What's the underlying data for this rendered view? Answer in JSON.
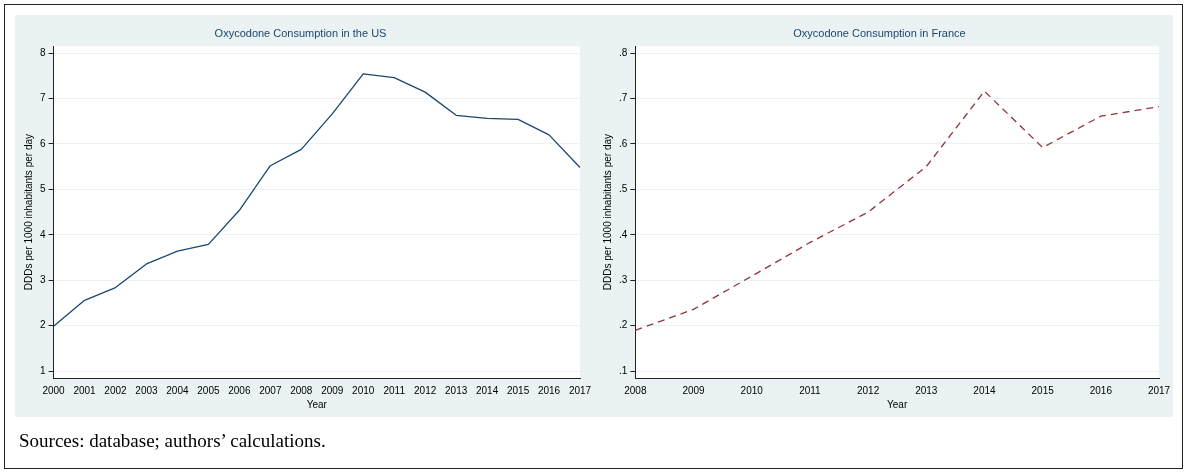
{
  "chart_data": [
    {
      "type": "line",
      "title": "Oxycodone Consumption in the US",
      "xlabel": "Year",
      "ylabel": "DDDs per 1000 inhabitants per day",
      "categories": [
        "2000",
        "2001",
        "2002",
        "2003",
        "2004",
        "2005",
        "2006",
        "2007",
        "2008",
        "2009",
        "2010",
        "2011",
        "2012",
        "2013",
        "2014",
        "2015",
        "2016",
        "2017"
      ],
      "series": [
        {
          "color": "#1a476f",
          "values": [
            1.99,
            2.56,
            2.84,
            3.36,
            3.64,
            3.79,
            4.54,
            5.52,
            5.88,
            6.66,
            7.54,
            7.46,
            7.14,
            6.63,
            6.56,
            6.54,
            6.2,
            5.48
          ]
        }
      ],
      "ylim": [
        0.85,
        8.15
      ],
      "yticks": [
        1,
        2,
        3,
        4,
        5,
        6,
        7,
        8
      ],
      "grid": "y",
      "line_style": "solid",
      "legend": false,
      "marker": "none",
      "annotations": [
        "Sources: database; authors’ calculations."
      ]
    },
    {
      "type": "line",
      "title": "Oxycodone Consumption in France",
      "xlabel": "Year",
      "ylabel": "DDDs per 1000 inhabitants per day",
      "categories": [
        "2008",
        "2009",
        "2010",
        "2011",
        "2012",
        "2013",
        "2014",
        "2015",
        "2016",
        "2017"
      ],
      "series": [
        {
          "color": "#90353b",
          "values": [
            0.19,
            0.236,
            0.309,
            0.383,
            0.45,
            0.55,
            0.716,
            0.592,
            0.661,
            0.682
          ]
        }
      ],
      "ylim": [
        0.085,
        0.815
      ],
      "yticks": [
        {
          "value": 0.1,
          "label": ".1"
        },
        {
          "value": 0.2,
          "label": ".2"
        },
        {
          "value": 0.3,
          "label": ".3"
        },
        {
          "value": 0.4,
          "label": ".4"
        },
        {
          "value": 0.5,
          "label": ".5"
        },
        {
          "value": 0.6,
          "label": ".6"
        },
        {
          "value": 0.7,
          "label": ".7"
        },
        {
          "value": 0.8,
          "label": ".8"
        }
      ],
      "grid": "y",
      "line_style": "dashed",
      "legend": false,
      "marker": "none"
    }
  ]
}
